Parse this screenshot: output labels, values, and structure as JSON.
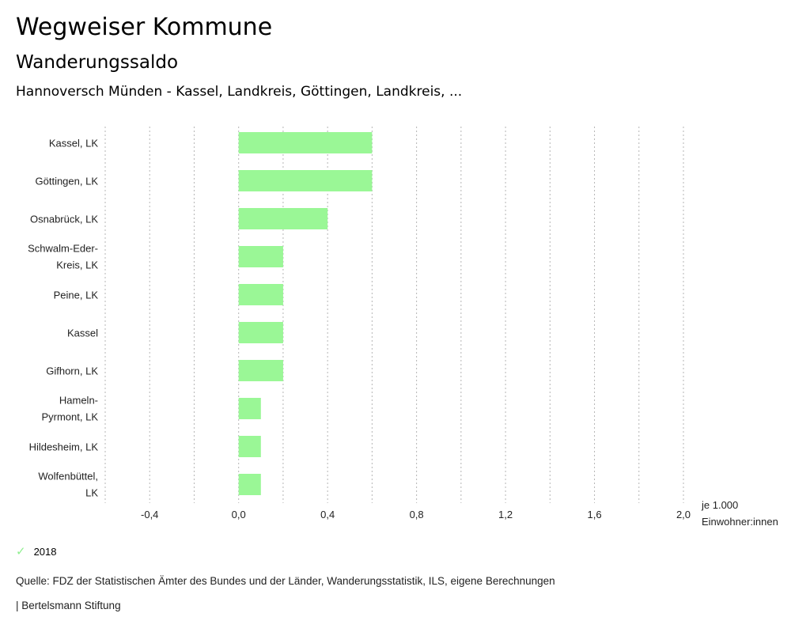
{
  "header": {
    "title": "Wegweiser Kommune",
    "subtitle": "Wanderungssaldo",
    "region": "Hannoversch Münden - Kassel, Landkreis, Göttingen, Landkreis, ..."
  },
  "chart_data": {
    "type": "bar",
    "orientation": "horizontal",
    "categories": [
      [
        "Kassel, LK"
      ],
      [
        "Göttingen, LK"
      ],
      [
        "Osnabrück, LK"
      ],
      [
        "Schwalm-Eder-",
        "Kreis, LK"
      ],
      [
        "Peine, LK"
      ],
      [
        "Kassel"
      ],
      [
        "Gifhorn, LK"
      ],
      [
        "Hameln-",
        "Pyrmont, LK"
      ],
      [
        "Hildesheim, LK"
      ],
      [
        "Wolfenbüttel,",
        "LK"
      ]
    ],
    "series": [
      {
        "name": "2018",
        "color": "#9af796",
        "values": [
          0.6,
          0.6,
          0.4,
          0.2,
          0.2,
          0.2,
          0.2,
          0.1,
          0.1,
          0.1
        ]
      }
    ],
    "xlim": [
      -0.6,
      2.0
    ],
    "xticks": [
      -0.4,
      0.0,
      0.4,
      0.8,
      1.2,
      1.6,
      2.0
    ],
    "xtick_labels": [
      "-0,4",
      "0,0",
      "0,4",
      "0,8",
      "1,2",
      "1,6",
      "2,0"
    ],
    "gridlines": [
      -0.6,
      -0.4,
      -0.2,
      0.0,
      0.2,
      0.4,
      0.6,
      0.8,
      1.0,
      1.2,
      1.4,
      1.6,
      1.8,
      2.0
    ],
    "unit_label": [
      "je 1.000",
      "Einwohner:innen"
    ],
    "grid": true,
    "legend_position": "bottom-left"
  },
  "legend": {
    "icon": "check-icon",
    "label": "2018"
  },
  "footer": {
    "source": "Quelle: FDZ der Statistischen Ämter des Bundes und der Länder, Wanderungsstatistik, ILS, eigene Berechnungen",
    "credit": "| Bertelsmann Stiftung"
  }
}
